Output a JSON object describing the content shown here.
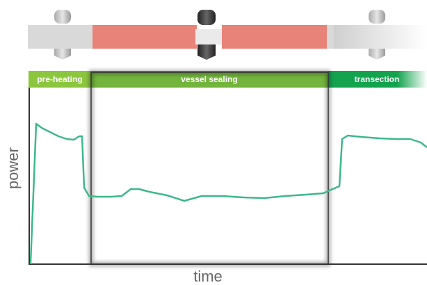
{
  "phases": [
    {
      "label": "pre-heating"
    },
    {
      "label": "vessel sealing"
    },
    {
      "label": "transection"
    }
  ],
  "axes": {
    "x_label": "time",
    "y_label": "power"
  },
  "colors": {
    "preheat": "#8cc63f",
    "sealing": "#72b43c",
    "transection": "#13a34f",
    "curve": "#3cb88a",
    "vessel": "#e8837a",
    "vessel_end": "#cccccc",
    "electrode": "#888888",
    "electrode_dark": "#333333",
    "axis": "#333333"
  }
}
